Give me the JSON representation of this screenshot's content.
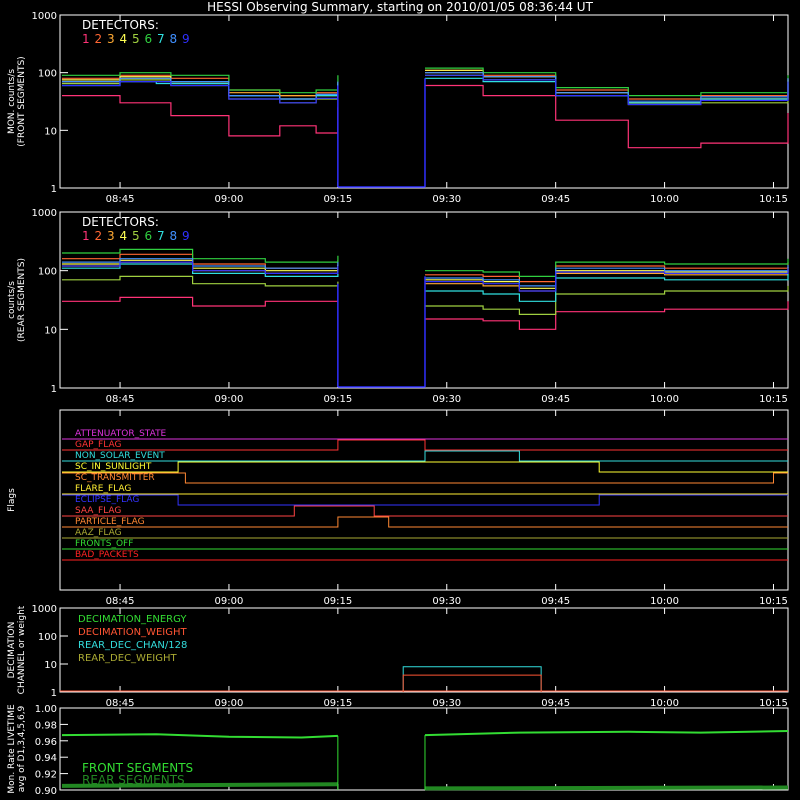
{
  "title": "HESSI Observing Summary, starting on 2010/01/05 08:36:44 UT",
  "time_axis": {
    "start": "08:36:44",
    "end": "10:17",
    "tick_labels": [
      "08:45",
      "09:00",
      "09:15",
      "09:30",
      "09:45",
      "10:00",
      "10:15"
    ],
    "tick_minutes": [
      525,
      540,
      555,
      570,
      585,
      600,
      615
    ]
  },
  "colors": {
    "axes": "#ffffff",
    "det1": "#ff3333",
    "det2": "#ff5533",
    "det3": "#ff9933",
    "det4": "#ffff33",
    "det5": "#a0d040",
    "det6": "#30d040",
    "det7": "#30e0e0",
    "det8": "#4090ff",
    "det9": "#3030ff"
  },
  "chart_data": [
    {
      "type": "line",
      "ylabel_1": "MON. counts/s",
      "ylabel_2": "(FRONT SEGMENTS)",
      "ylog": true,
      "ylim": [
        1,
        1000
      ],
      "ytick_labels": [
        "1",
        "10",
        "100",
        "1000"
      ],
      "legend_title": "DETECTORS:",
      "legend_digits": [
        "1",
        "2",
        "3",
        "4",
        "5",
        "6",
        "7",
        "8",
        "9"
      ],
      "gap": [
        555,
        567
      ],
      "series": [
        {
          "color": "#ff3377",
          "x": [
            517,
            525,
            532,
            540,
            547,
            552,
            555
          ],
          "y": [
            40,
            30,
            18,
            8,
            12,
            9,
            25
          ],
          "x2": [
            567,
            575,
            585,
            595,
            605,
            617
          ],
          "y2": [
            60,
            40,
            15,
            5,
            6,
            20
          ]
        },
        {
          "color": "#ff6633",
          "x": [
            517,
            525,
            532,
            540,
            547,
            552,
            555
          ],
          "y": [
            80,
            90,
            80,
            50,
            40,
            45,
            70
          ],
          "x2": [
            567,
            575,
            585,
            595,
            605,
            617
          ],
          "y2": [
            110,
            90,
            50,
            35,
            40,
            80
          ]
        },
        {
          "color": "#ffaa33",
          "x": [
            517,
            525,
            532,
            540,
            547,
            552,
            555
          ],
          "y": [
            70,
            80,
            70,
            45,
            40,
            42,
            65
          ],
          "x2": [
            567,
            575,
            585,
            595,
            605,
            617
          ],
          "y2": [
            100,
            85,
            45,
            30,
            35,
            75
          ]
        },
        {
          "color": "#ffff55",
          "x": [
            517,
            525,
            532,
            540,
            547,
            552,
            555
          ],
          "y": [
            75,
            85,
            70,
            40,
            35,
            40,
            70
          ],
          "x2": [
            567,
            575,
            585,
            595,
            605,
            617
          ],
          "y2": [
            110,
            85,
            45,
            30,
            35,
            80
          ]
        },
        {
          "color": "#a0d040",
          "x": [
            517,
            525,
            532,
            540,
            547,
            552,
            555
          ],
          "y": [
            65,
            75,
            60,
            35,
            30,
            35,
            60
          ],
          "x2": [
            567,
            575,
            585,
            595,
            605,
            617
          ],
          "y2": [
            90,
            75,
            40,
            28,
            30,
            70
          ]
        },
        {
          "color": "#30d040",
          "x": [
            517,
            525,
            532,
            540,
            547,
            552,
            555
          ],
          "y": [
            90,
            100,
            90,
            50,
            45,
            50,
            90
          ],
          "x2": [
            567,
            575,
            585,
            595,
            605,
            617
          ],
          "y2": [
            120,
            100,
            55,
            40,
            45,
            90
          ]
        },
        {
          "color": "#30e0e0",
          "x": [
            517,
            525,
            530,
            540,
            547,
            552,
            555
          ],
          "y": [
            60,
            70,
            65,
            40,
            35,
            40,
            65
          ],
          "x2": [
            567,
            575,
            585,
            595,
            605,
            617
          ],
          "y2": [
            80,
            70,
            40,
            30,
            35,
            65
          ]
        },
        {
          "color": "#4090ff",
          "x": [
            517,
            525,
            532,
            540,
            547,
            552,
            555
          ],
          "y": [
            70,
            80,
            70,
            40,
            35,
            42,
            70
          ],
          "x2": [
            567,
            575,
            585,
            595,
            605,
            617
          ],
          "y2": [
            100,
            85,
            45,
            32,
            38,
            80
          ]
        },
        {
          "color": "#3030ff",
          "x": [
            517,
            525,
            532,
            540,
            547,
            552,
            555
          ],
          "y": [
            60,
            70,
            60,
            35,
            30,
            36,
            60
          ],
          "x2": [
            567,
            575,
            585,
            595,
            605,
            617
          ],
          "y2": [
            90,
            75,
            40,
            28,
            33,
            70
          ]
        }
      ]
    },
    {
      "type": "line",
      "ylabel_1": "counts/s",
      "ylabel_2": "(REAR SEGMENTS)",
      "ylog": true,
      "ylim": [
        1,
        1000
      ],
      "ytick_labels": [
        "1",
        "10",
        "100",
        "1000"
      ],
      "legend_title": "DETECTORS:",
      "legend_digits": [
        "1",
        "2",
        "3",
        "4",
        "5",
        "6",
        "7",
        "8",
        "9"
      ],
      "gap": [
        555,
        567
      ],
      "series": [
        {
          "color": "#ff3377",
          "x": [
            517,
            525,
            535,
            545,
            555
          ],
          "y": [
            30,
            35,
            25,
            30,
            30
          ],
          "x2": [
            567,
            575,
            580,
            585,
            600,
            617
          ],
          "y2": [
            15,
            14,
            10,
            20,
            22,
            30
          ]
        },
        {
          "color": "#ff6633",
          "x": [
            517,
            525,
            535,
            545,
            555
          ],
          "y": [
            160,
            190,
            130,
            110,
            150
          ],
          "x2": [
            567,
            575,
            580,
            585,
            600,
            617
          ],
          "y2": [
            85,
            80,
            65,
            120,
            110,
            140
          ]
        },
        {
          "color": "#ffaa33",
          "x": [
            517,
            525,
            535,
            545,
            555
          ],
          "y": [
            120,
            140,
            100,
            90,
            115
          ],
          "x2": [
            567,
            575,
            580,
            585,
            600,
            617
          ],
          "y2": [
            60,
            55,
            45,
            90,
            85,
            105
          ]
        },
        {
          "color": "#ffff55",
          "x": [
            517,
            525,
            535,
            545,
            555
          ],
          "y": [
            130,
            150,
            110,
            100,
            125
          ],
          "x2": [
            567,
            575,
            580,
            585,
            600,
            617
          ],
          "y2": [
            70,
            65,
            50,
            100,
            95,
            115
          ]
        },
        {
          "color": "#a0d040",
          "x": [
            517,
            525,
            535,
            545,
            555
          ],
          "y": [
            70,
            80,
            60,
            55,
            65
          ],
          "x2": [
            567,
            575,
            580,
            585,
            600,
            617
          ],
          "y2": [
            25,
            22,
            18,
            40,
            45,
            55
          ]
        },
        {
          "color": "#30d040",
          "x": [
            517,
            525,
            535,
            545,
            555
          ],
          "y": [
            200,
            230,
            160,
            140,
            180
          ],
          "x2": [
            567,
            575,
            580,
            585,
            600,
            617
          ],
          "y2": [
            100,
            95,
            80,
            140,
            130,
            160
          ]
        },
        {
          "color": "#30e0e0",
          "x": [
            517,
            525,
            535,
            545,
            555
          ],
          "y": [
            110,
            130,
            90,
            80,
            100
          ],
          "x2": [
            567,
            575,
            580,
            585,
            600,
            617
          ],
          "y2": [
            45,
            40,
            30,
            75,
            70,
            90
          ]
        },
        {
          "color": "#4090ff",
          "x": [
            517,
            525,
            535,
            545,
            555
          ],
          "y": [
            140,
            160,
            120,
            110,
            140
          ],
          "x2": [
            567,
            575,
            580,
            585,
            600,
            617
          ],
          "y2": [
            75,
            70,
            55,
            110,
            100,
            125
          ]
        },
        {
          "color": "#3030ff",
          "x": [
            517,
            525,
            535,
            545,
            555
          ],
          "y": [
            120,
            140,
            100,
            90,
            120
          ],
          "x2": [
            567,
            575,
            580,
            585,
            600,
            617
          ],
          "y2": [
            65,
            60,
            45,
            95,
            90,
            110
          ]
        }
      ]
    },
    {
      "type": "line",
      "ylabel_1": "Flags",
      "flags": [
        {
          "name": "ATTENUATOR_STATE",
          "color": "#dd33dd",
          "segments": [
            [
              517,
              617,
              0
            ]
          ]
        },
        {
          "name": "GAP_FLAG",
          "color": "#ff3333",
          "segments": [
            [
              517,
              555,
              0
            ],
            [
              555,
              567,
              1
            ],
            [
              567,
              617,
              0
            ]
          ]
        },
        {
          "name": "NON_SOLAR_EVENT",
          "color": "#33dddd",
          "segments": [
            [
              517,
              567,
              0
            ],
            [
              567,
              580,
              1
            ],
            [
              580,
              617,
              0
            ]
          ]
        },
        {
          "name": "SC_IN_SUNLIGHT",
          "color": "#ffff33",
          "segments": [
            [
              517,
              533,
              0
            ],
            [
              533,
              591,
              1
            ],
            [
              591,
              617,
              0
            ]
          ]
        },
        {
          "name": "SC_TRANSMITTER",
          "color": "#ff8833",
          "segments": [
            [
              517,
              534,
              1
            ],
            [
              534,
              615,
              0
            ],
            [
              615,
              617,
              1
            ]
          ]
        },
        {
          "name": "FLARE_FLAG",
          "color": "#ffee33",
          "segments": [
            [
              517,
              617,
              0
            ]
          ]
        },
        {
          "name": "ECLIPSE_FLAG",
          "color": "#3333ff",
          "segments": [
            [
              517,
              533,
              1
            ],
            [
              533,
              591,
              0
            ],
            [
              591,
              617,
              1
            ]
          ]
        },
        {
          "name": "SAA_FLAG",
          "color": "#ff4444",
          "segments": [
            [
              517,
              549,
              0
            ],
            [
              549,
              560,
              1
            ],
            [
              560,
              617,
              0
            ]
          ]
        },
        {
          "name": "PARTICLE_FLAG",
          "color": "#ff8833",
          "segments": [
            [
              517,
              555,
              0
            ],
            [
              555,
              562,
              1
            ],
            [
              562,
              617,
              0
            ]
          ]
        },
        {
          "name": "AAZ_FLAG",
          "color": "#aaaa33",
          "segments": [
            [
              517,
              617,
              0
            ]
          ]
        },
        {
          "name": "FRONTS_OFF",
          "color": "#33dd33",
          "segments": [
            [
              517,
              617,
              0
            ]
          ]
        },
        {
          "name": "BAD_PACKETS",
          "color": "#ff2222",
          "segments": [
            [
              517,
              617,
              0
            ]
          ]
        }
      ]
    },
    {
      "type": "line",
      "ylabel_1": "DECIMATION",
      "ylabel_2": "CHANNEL or weight",
      "ylog": true,
      "ylim": [
        1,
        1000
      ],
      "ytick_labels": [
        "1",
        "10",
        "100",
        "1000"
      ],
      "legend": [
        {
          "name": "DECIMATION_ENERGY",
          "color": "#33dd33"
        },
        {
          "name": "DECIMATION_WEIGHT",
          "color": "#ff5533"
        },
        {
          "name": "REAR_DEC_CHAN/128",
          "color": "#33dddd"
        },
        {
          "name": "REAR_DEC_WEIGHT",
          "color": "#aaaa33"
        }
      ],
      "boxes": [
        {
          "color": "#33dddd",
          "x": [
            564,
            583
          ],
          "y": 8
        },
        {
          "color": "#ff5533",
          "x": [
            564,
            583
          ],
          "y": 4
        }
      ]
    },
    {
      "type": "line",
      "ylabel_1": "Mon. Rate LIVETIME",
      "ylabel_2": "avg of D1,3,4,5,6,9",
      "ylim": [
        0.9,
        1.0
      ],
      "ytick_labels": [
        "0.90",
        "0.92",
        "0.94",
        "0.96",
        "0.98",
        "1.00"
      ],
      "gap": [
        555,
        567
      ],
      "legend": [
        {
          "name": "FRONT SEGMENTS",
          "color": "#33dd33"
        },
        {
          "name": "REAR SEGMENTS",
          "color": "#228822"
        }
      ],
      "front": {
        "x": [
          517,
          530,
          540,
          550,
          555,
          567,
          580,
          595,
          605,
          617
        ],
        "y": [
          0.967,
          0.968,
          0.965,
          0.964,
          0.966,
          0.967,
          0.97,
          0.971,
          0.97,
          0.972
        ]
      },
      "rear": {
        "x": [
          517,
          555,
          567,
          617
        ],
        "y": [
          0.905,
          0.907,
          0.902,
          0.903
        ]
      }
    }
  ]
}
